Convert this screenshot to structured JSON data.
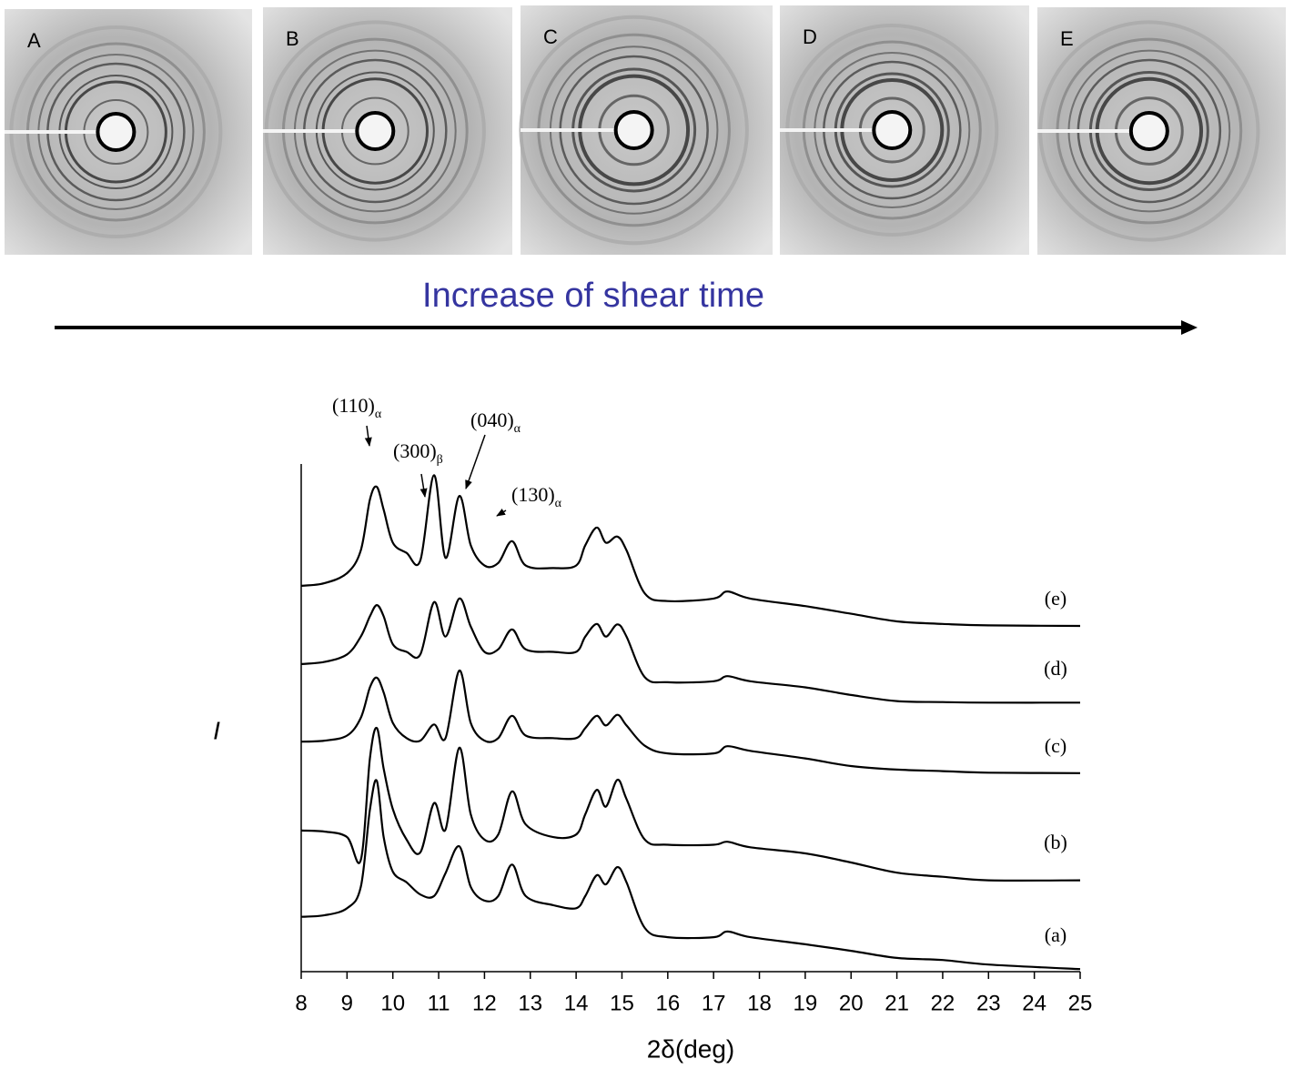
{
  "panels": {
    "labels": [
      "A",
      "B",
      "C",
      "D",
      "E"
    ]
  },
  "caption": "Increase of shear time",
  "chart_data": {
    "type": "line",
    "xlabel": "2δ(deg)",
    "ylabel": "I",
    "xlim": [
      8,
      25
    ],
    "xticks": [
      8,
      9,
      10,
      11,
      12,
      13,
      14,
      15,
      16,
      17,
      18,
      19,
      20,
      21,
      22,
      23,
      24,
      25
    ],
    "ylim": [
      0,
      10
    ],
    "x": [
      8,
      8.5,
      9,
      9.3,
      9.5,
      9.65,
      9.8,
      10,
      10.3,
      10.6,
      10.9,
      11.15,
      11.45,
      11.7,
      12,
      12.3,
      12.6,
      12.9,
      13.5,
      14,
      14.2,
      14.45,
      14.65,
      14.9,
      15.1,
      15.5,
      16,
      17,
      17.3,
      17.8,
      19,
      20,
      21,
      22,
      23,
      25
    ],
    "series": [
      {
        "name": "(a)",
        "color": "#000000",
        "values": [
          1.08,
          1.11,
          1.25,
          1.67,
          3.19,
          3.76,
          2.65,
          1.97,
          1.76,
          1.52,
          1.49,
          1.94,
          2.47,
          1.67,
          1.4,
          1.49,
          2.11,
          1.49,
          1.31,
          1.25,
          1.49,
          1.9,
          1.72,
          2.06,
          1.76,
          0.86,
          0.68,
          0.68,
          0.79,
          0.68,
          0.54,
          0.41,
          0.27,
          0.23,
          0.14,
          0.05
        ]
      },
      {
        "name": "(b)",
        "color": "#000000",
        "values": [
          2.78,
          2.76,
          2.65,
          2.2,
          4.2,
          4.8,
          4.0,
          3.2,
          2.6,
          2.35,
          3.32,
          2.8,
          4.41,
          3.1,
          2.6,
          2.7,
          3.55,
          2.9,
          2.65,
          2.7,
          3.1,
          3.58,
          3.25,
          3.78,
          3.4,
          2.6,
          2.5,
          2.5,
          2.56,
          2.45,
          2.33,
          2.15,
          1.95,
          1.87,
          1.8,
          1.8
        ]
      },
      {
        "name": "(c)",
        "color": "#000000",
        "values": [
          4.53,
          4.55,
          4.65,
          5.0,
          5.6,
          5.79,
          5.5,
          4.9,
          4.6,
          4.55,
          4.87,
          4.6,
          5.93,
          4.9,
          4.55,
          4.6,
          5.04,
          4.65,
          4.6,
          4.6,
          4.8,
          5.04,
          4.85,
          5.06,
          4.85,
          4.45,
          4.3,
          4.3,
          4.44,
          4.35,
          4.2,
          4.05,
          3.98,
          3.95,
          3.92,
          3.91
        ]
      },
      {
        "name": "(d)",
        "color": "#000000",
        "values": [
          6.06,
          6.1,
          6.25,
          6.6,
          7.0,
          7.22,
          7.0,
          6.45,
          6.3,
          6.25,
          7.28,
          6.6,
          7.35,
          6.8,
          6.3,
          6.35,
          6.74,
          6.35,
          6.3,
          6.3,
          6.6,
          6.85,
          6.6,
          6.84,
          6.6,
          5.8,
          5.7,
          5.72,
          5.82,
          5.72,
          5.6,
          5.45,
          5.33,
          5.31,
          5.3,
          5.3
        ]
      },
      {
        "name": "(e)",
        "color": "#000000",
        "values": [
          7.6,
          7.65,
          7.85,
          8.3,
          9.3,
          9.55,
          9.1,
          8.45,
          8.25,
          8.1,
          9.78,
          8.15,
          9.37,
          8.4,
          8.0,
          8.05,
          8.48,
          8.0,
          7.95,
          8.0,
          8.4,
          8.75,
          8.45,
          8.57,
          8.3,
          7.45,
          7.3,
          7.35,
          7.49,
          7.35,
          7.2,
          7.05,
          6.9,
          6.85,
          6.82,
          6.81
        ]
      }
    ],
    "annotations": [
      {
        "text": "(110)",
        "sub": "α"
      },
      {
        "text": "(300)",
        "sub": "β"
      },
      {
        "text": "(040)",
        "sub": "α"
      },
      {
        "text": "(130)",
        "sub": "α"
      }
    ]
  }
}
